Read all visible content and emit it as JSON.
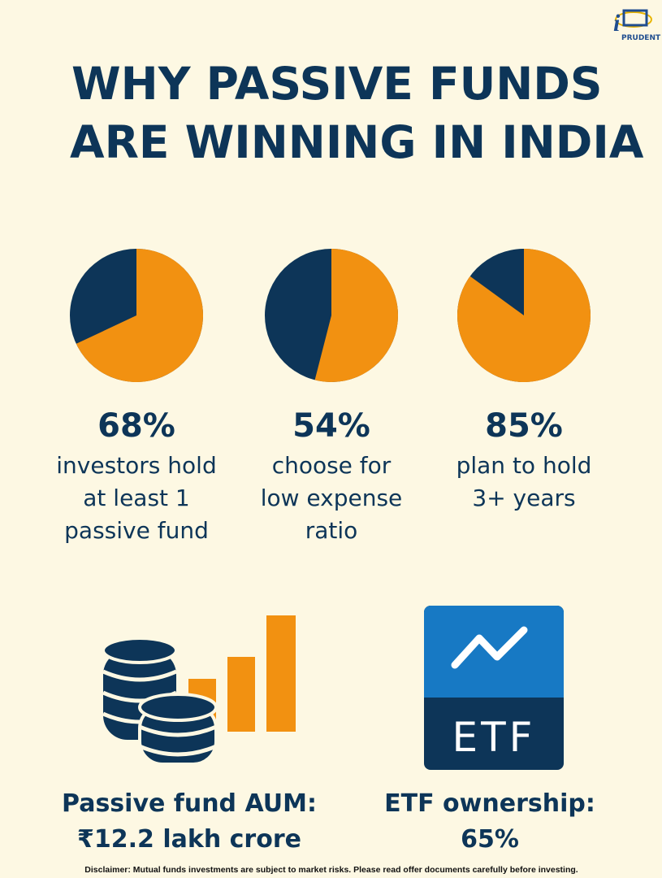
{
  "logo": "PRUDENT",
  "title": [
    "WHY PASSIVE FUNDS",
    "ARE WINNING IN INDIA"
  ],
  "stats": [
    {
      "value": 68,
      "value_label": "68%",
      "caption": [
        "investors hold",
        "at least 1",
        "passive fund"
      ]
    },
    {
      "value": 54,
      "value_label": "54%",
      "caption": [
        "choose for",
        "low expense",
        "ratio"
      ]
    },
    {
      "value": 85,
      "value_label": "85%",
      "caption": [
        "plan to hold",
        "3+ years"
      ]
    }
  ],
  "highlights": [
    {
      "label": "Passive fund AUM:",
      "value": "₹12.2 lakh crore"
    },
    {
      "label": "ETF ownership:",
      "value": "65%"
    }
  ],
  "etf_icon_text": "ETF",
  "disclaimer": "Disclaimer: Mutual funds investments are subject to market risks. Please read offer documents carefully before investing."
}
